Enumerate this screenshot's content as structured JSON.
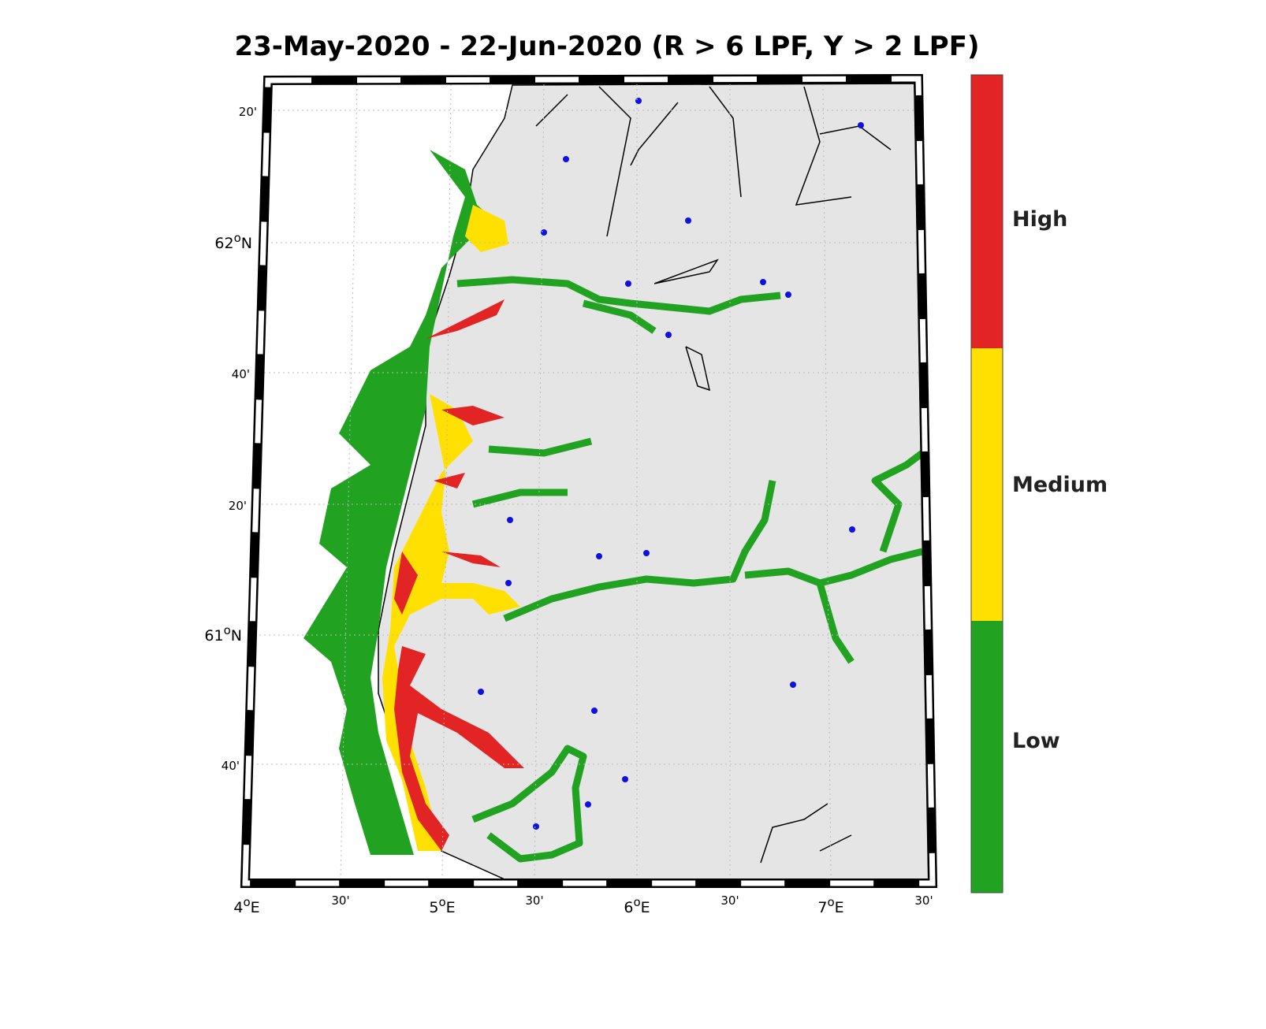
{
  "title": "23-May-2020  - 22-Jun-2020  (R > 6 LPF, Y > 2 LPF)",
  "lat_labels": [
    [
      "20'"
    ],
    [
      "62",
      "o",
      "N"
    ],
    [
      "40'"
    ],
    [
      "20'"
    ],
    [
      "61",
      "o",
      "N"
    ],
    [
      "40'"
    ]
  ],
  "lon_labels": [
    [
      "4",
      "o",
      "E"
    ],
    [
      "30'"
    ],
    [
      "5",
      "o",
      "E"
    ],
    [
      "30'"
    ],
    [
      "6",
      "o",
      "E"
    ],
    [
      "30'"
    ],
    [
      "7",
      "o",
      "E"
    ],
    [
      "30'"
    ]
  ],
  "colorbar": {
    "labels": [
      "High",
      "Medium",
      "Low"
    ]
  }
}
